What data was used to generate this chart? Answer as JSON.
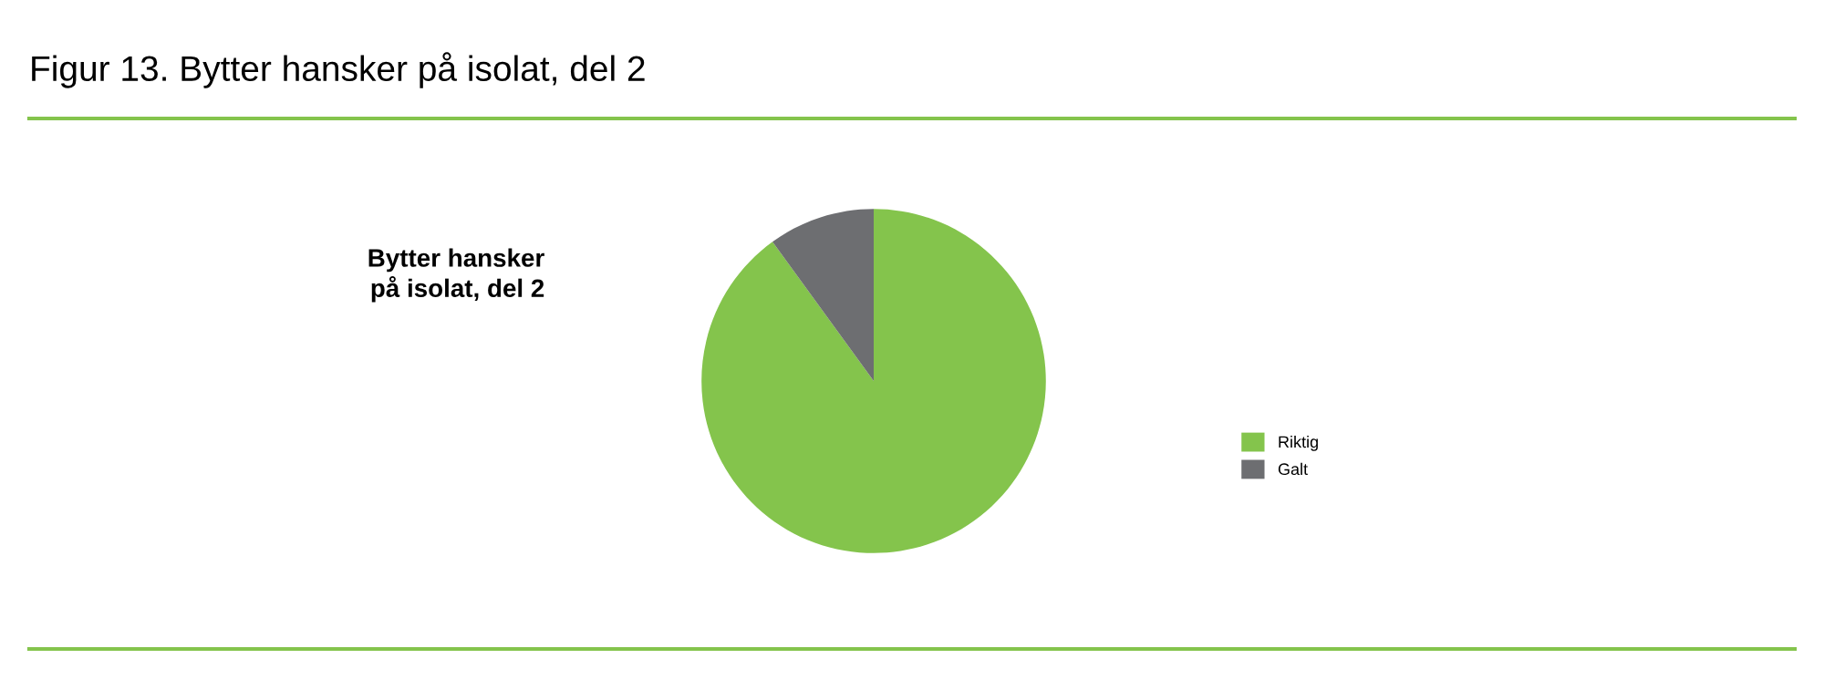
{
  "chart_data": {
    "type": "pie",
    "title": "Figur 13. Bytter hansker på isolat, del 2",
    "subtitle": "Bytter hansker\npå isolat, del 2",
    "categories": [
      "Riktig",
      "Galt"
    ],
    "values": [
      90,
      10
    ],
    "colors": [
      "#84c44c",
      "#6d6e71"
    ],
    "legend": "right"
  }
}
